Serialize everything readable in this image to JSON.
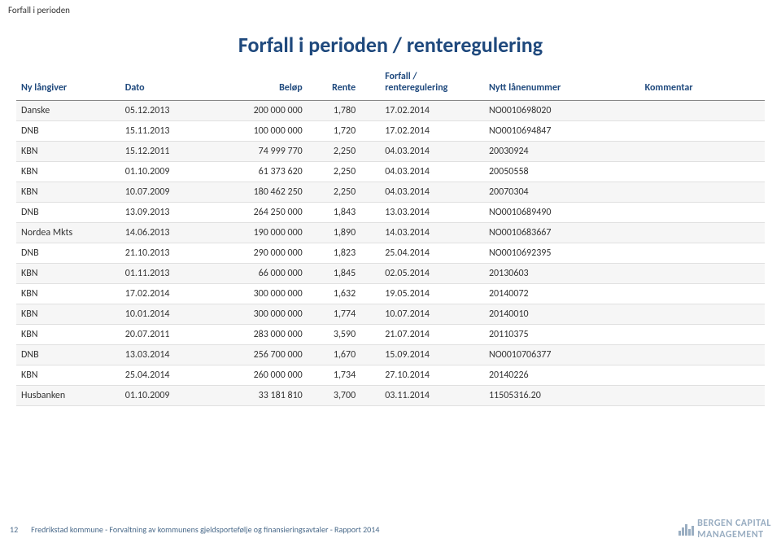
{
  "breadcrumb": "Forfall i perioden",
  "title": "Forfall i perioden / renteregulering",
  "columns": {
    "lender": "Ny långiver",
    "date": "Dato",
    "amount": "Beløp",
    "rate": "Rente",
    "forfall": "Forfall / renteregulering",
    "loan": "Nytt lånenummer",
    "comment": "Kommentar"
  },
  "rows": [
    {
      "lender": "Danske",
      "date": "05.12.2013",
      "amount": "200 000 000",
      "rate": "1,780",
      "forfall": "17.02.2014",
      "loan": "NO0010698020",
      "comment": ""
    },
    {
      "lender": "DNB",
      "date": "15.11.2013",
      "amount": "100 000 000",
      "rate": "1,720",
      "forfall": "17.02.2014",
      "loan": "NO0010694847",
      "comment": ""
    },
    {
      "lender": "KBN",
      "date": "15.12.2011",
      "amount": "74 999 770",
      "rate": "2,250",
      "forfall": "04.03.2014",
      "loan": "20030924",
      "comment": ""
    },
    {
      "lender": "KBN",
      "date": "01.10.2009",
      "amount": "61 373 620",
      "rate": "2,250",
      "forfall": "04.03.2014",
      "loan": "20050558",
      "comment": ""
    },
    {
      "lender": "KBN",
      "date": "10.07.2009",
      "amount": "180 462 250",
      "rate": "2,250",
      "forfall": "04.03.2014",
      "loan": "20070304",
      "comment": ""
    },
    {
      "lender": "DNB",
      "date": "13.09.2013",
      "amount": "264 250 000",
      "rate": "1,843",
      "forfall": "13.03.2014",
      "loan": "NO0010689490",
      "comment": ""
    },
    {
      "lender": "Nordea Mkts",
      "date": "14.06.2013",
      "amount": "190 000 000",
      "rate": "1,890",
      "forfall": "14.03.2014",
      "loan": "NO0010683667",
      "comment": ""
    },
    {
      "lender": "DNB",
      "date": "21.10.2013",
      "amount": "290 000 000",
      "rate": "1,823",
      "forfall": "25.04.2014",
      "loan": "NO0010692395",
      "comment": ""
    },
    {
      "lender": "KBN",
      "date": "01.11.2013",
      "amount": "66 000 000",
      "rate": "1,845",
      "forfall": "02.05.2014",
      "loan": "20130603",
      "comment": ""
    },
    {
      "lender": "KBN",
      "date": "17.02.2014",
      "amount": "300 000 000",
      "rate": "1,632",
      "forfall": "19.05.2014",
      "loan": "20140072",
      "comment": ""
    },
    {
      "lender": "KBN",
      "date": "10.01.2014",
      "amount": "300 000 000",
      "rate": "1,774",
      "forfall": "10.07.2014",
      "loan": "20140010",
      "comment": ""
    },
    {
      "lender": "KBN",
      "date": "20.07.2011",
      "amount": "283 000 000",
      "rate": "3,590",
      "forfall": "21.07.2014",
      "loan": "20110375",
      "comment": ""
    },
    {
      "lender": "DNB",
      "date": "13.03.2014",
      "amount": "256 700 000",
      "rate": "1,670",
      "forfall": "15.09.2014",
      "loan": "NO0010706377",
      "comment": ""
    },
    {
      "lender": "KBN",
      "date": "25.04.2014",
      "amount": "260 000 000",
      "rate": "1,734",
      "forfall": "27.10.2014",
      "loan": "20140226",
      "comment": ""
    },
    {
      "lender": "Husbanken",
      "date": "01.10.2009",
      "amount": "33 181 810",
      "rate": "3,700",
      "forfall": "03.11.2014",
      "loan": "11505316.20",
      "comment": ""
    }
  ],
  "footer": {
    "page": "12",
    "text": "Fredrikstad kommune - Forvaltning av kommunens gjeldsportefølje og finansieringsavtaler  - Rapport 2014",
    "logo1": "BERGEN CAPITAL",
    "logo2": "MANAGEMENT"
  },
  "styling": {
    "title_color": "#1f497d",
    "header_color": "#1f497d",
    "row_odd_bg": "#f6f6f6",
    "row_even_bg": "#ffffff",
    "text_color": "#333333",
    "logo_color": "#9aaec2",
    "logo_bar_heights": [
      6,
      10,
      14,
      8,
      12
    ]
  }
}
